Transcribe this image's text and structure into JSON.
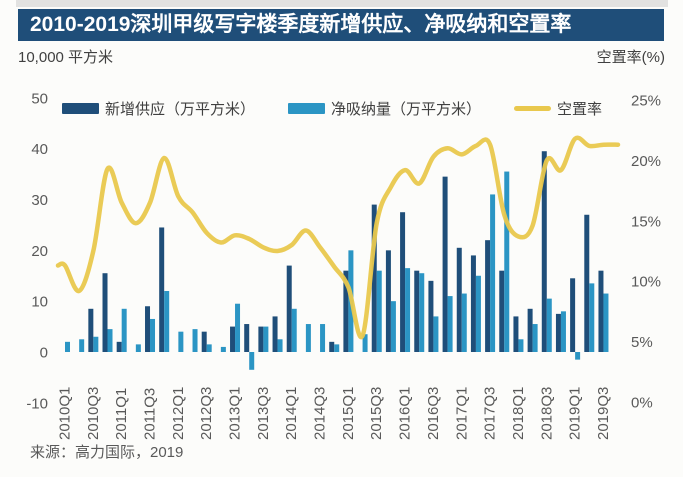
{
  "title": "2010-2019深圳甲级写字楼季度新增供应、净吸纳和空置率",
  "left_axis_unit": "10,000 平方米",
  "right_axis_unit": "空置率(%)",
  "source": "来源：高力国际，2019",
  "colors": {
    "title_bar": "#1f4e79",
    "supply_bar": "#1f4e79",
    "absorption_bar": "#2b95c4",
    "vacancy_line": "#e9c84d"
  },
  "legend": [
    {
      "label": "新增供应（万平方米）",
      "type": "bar",
      "color": "#1f4e79"
    },
    {
      "label": "净吸纳量（万平方米）",
      "type": "bar",
      "color": "#2b95c4"
    },
    {
      "label": "空置率",
      "type": "line",
      "color": "#e9c84d"
    }
  ],
  "chart_data": {
    "type": "combo-bar-line",
    "title": "2010-2019深圳甲级写字楼季度新增供应、净吸纳和空置率",
    "categories": [
      "2010Q1",
      "2010Q2",
      "2010Q3",
      "2010Q4",
      "2011Q1",
      "2011Q2",
      "2011Q3",
      "2011Q4",
      "2012Q1",
      "2012Q2",
      "2012Q3",
      "2012Q4",
      "2013Q1",
      "2013Q2",
      "2013Q3",
      "2013Q4",
      "2014Q1",
      "2014Q2",
      "2014Q3",
      "2014Q4",
      "2015Q1",
      "2015Q2",
      "2015Q3",
      "2015Q4",
      "2016Q1",
      "2016Q2",
      "2016Q3",
      "2016Q4",
      "2017Q1",
      "2017Q2",
      "2017Q3",
      "2017Q4",
      "2018Q1",
      "2018Q2",
      "2018Q3",
      "2018Q4",
      "2019Q1",
      "2019Q2",
      "2019Q3"
    ],
    "x_tick_labels": [
      "2010Q1",
      "2010Q3",
      "2011Q1",
      "2011Q3",
      "2012Q1",
      "2012Q3",
      "2013Q1",
      "2013Q3",
      "2014Q1",
      "2014Q3",
      "2015Q1",
      "2015Q3",
      "2016Q1",
      "2016Q3",
      "2017Q1",
      "2017Q3",
      "2018Q1",
      "2018Q3",
      "2019Q1",
      "2019Q3"
    ],
    "series": [
      {
        "name": "新增供应（万平方米）",
        "type": "bar",
        "axis": "left",
        "color": "#1f4e79",
        "values": [
          0,
          0,
          8.5,
          15.5,
          2,
          0,
          9,
          24.5,
          0,
          0,
          4,
          0,
          5,
          5.5,
          5,
          7,
          17,
          0,
          0,
          2,
          16,
          0,
          29,
          20,
          27.5,
          16,
          14,
          34.5,
          20.5,
          19,
          22,
          16,
          7,
          8.5,
          39.5,
          7.5,
          14.5,
          27,
          16
        ]
      },
      {
        "name": "净吸纳量（万平方米）",
        "type": "bar",
        "axis": "left",
        "color": "#2b95c4",
        "values": [
          2,
          2.5,
          3,
          4.5,
          8.5,
          1.5,
          6.5,
          12,
          4,
          4.5,
          1.5,
          1,
          9.5,
          -3.5,
          5,
          2.5,
          8.5,
          5.5,
          5.5,
          1.5,
          20,
          3.5,
          16,
          10,
          16.5,
          15.5,
          7,
          11,
          11.5,
          15,
          31,
          35.5,
          2.5,
          5.5,
          10.5,
          8,
          -1.5,
          13.5,
          11.5
        ]
      },
      {
        "name": "空置率",
        "type": "line",
        "axis": "right",
        "color": "#e9c84d",
        "values": [
          11.3,
          9.2,
          12.5,
          19.3,
          16.5,
          14.8,
          16.5,
          20.2,
          17,
          15.7,
          14,
          13.2,
          13.8,
          13.5,
          12.8,
          12.5,
          13,
          14.2,
          12.8,
          11.2,
          9.5,
          5.5,
          14.8,
          17.8,
          19.2,
          18.1,
          20.3,
          21,
          20.5,
          21.2,
          21.3,
          15.5,
          13.7,
          14.6,
          20,
          19.2,
          21.8,
          21.2,
          21.3
        ]
      }
    ],
    "left_axis": {
      "min": -10,
      "max": 50,
      "ticks": [
        50,
        40,
        30,
        20,
        10,
        0,
        -10
      ]
    },
    "right_axis": {
      "min": 0,
      "max": 25,
      "tick_labels": [
        "25%",
        "20%",
        "15%",
        "10%",
        "5%",
        "0%"
      ],
      "tick_values": [
        25,
        20,
        15,
        10,
        5,
        0
      ]
    },
    "grid": false,
    "legend_position": "top"
  }
}
